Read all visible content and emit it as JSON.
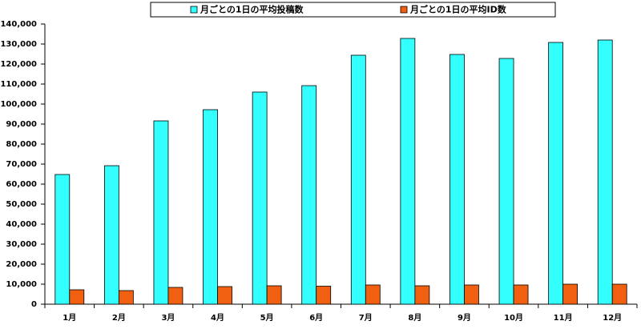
{
  "chart_data": {
    "type": "bar",
    "categories": [
      "1月",
      "2月",
      "3月",
      "4月",
      "5月",
      "6月",
      "7月",
      "8月",
      "9月",
      "10月",
      "11月",
      "12月"
    ],
    "series": [
      {
        "name": "月ごとの1日の平均投稿数",
        "color": "#33ffff",
        "values": [
          64800,
          69200,
          91600,
          97200,
          106000,
          109200,
          124400,
          132800,
          124800,
          122800,
          130800,
          132000
        ]
      },
      {
        "name": "月ごとの1日の平均ID数",
        "color": "#f06010",
        "values": [
          7200,
          6800,
          8400,
          8800,
          9200,
          9000,
          9600,
          9200,
          9600,
          9600,
          10000,
          10000
        ]
      }
    ],
    "ylim": [
      0,
      140000
    ],
    "yticks": [
      0,
      {
        "value": 10000,
        "label": "10,000"
      },
      {
        "value": 20000,
        "label": "20,000"
      },
      {
        "value": 30000,
        "label": "30,000"
      },
      {
        "value": 40000,
        "label": "40,000"
      },
      {
        "value": 50000,
        "label": "50,000"
      },
      {
        "value": 60000,
        "label": "60,000"
      },
      {
        "value": 70000,
        "label": "70,000"
      },
      {
        "value": 80000,
        "label": "80,000"
      },
      {
        "value": 90000,
        "label": "90,000"
      },
      {
        "value": 100000,
        "label": "100,000"
      },
      {
        "value": 110000,
        "label": "110,000"
      },
      {
        "value": 120000,
        "label": "120,000"
      },
      {
        "value": 130000,
        "label": "130,000"
      },
      {
        "value": 140000,
        "label": "140,000"
      }
    ],
    "legend": "top"
  }
}
